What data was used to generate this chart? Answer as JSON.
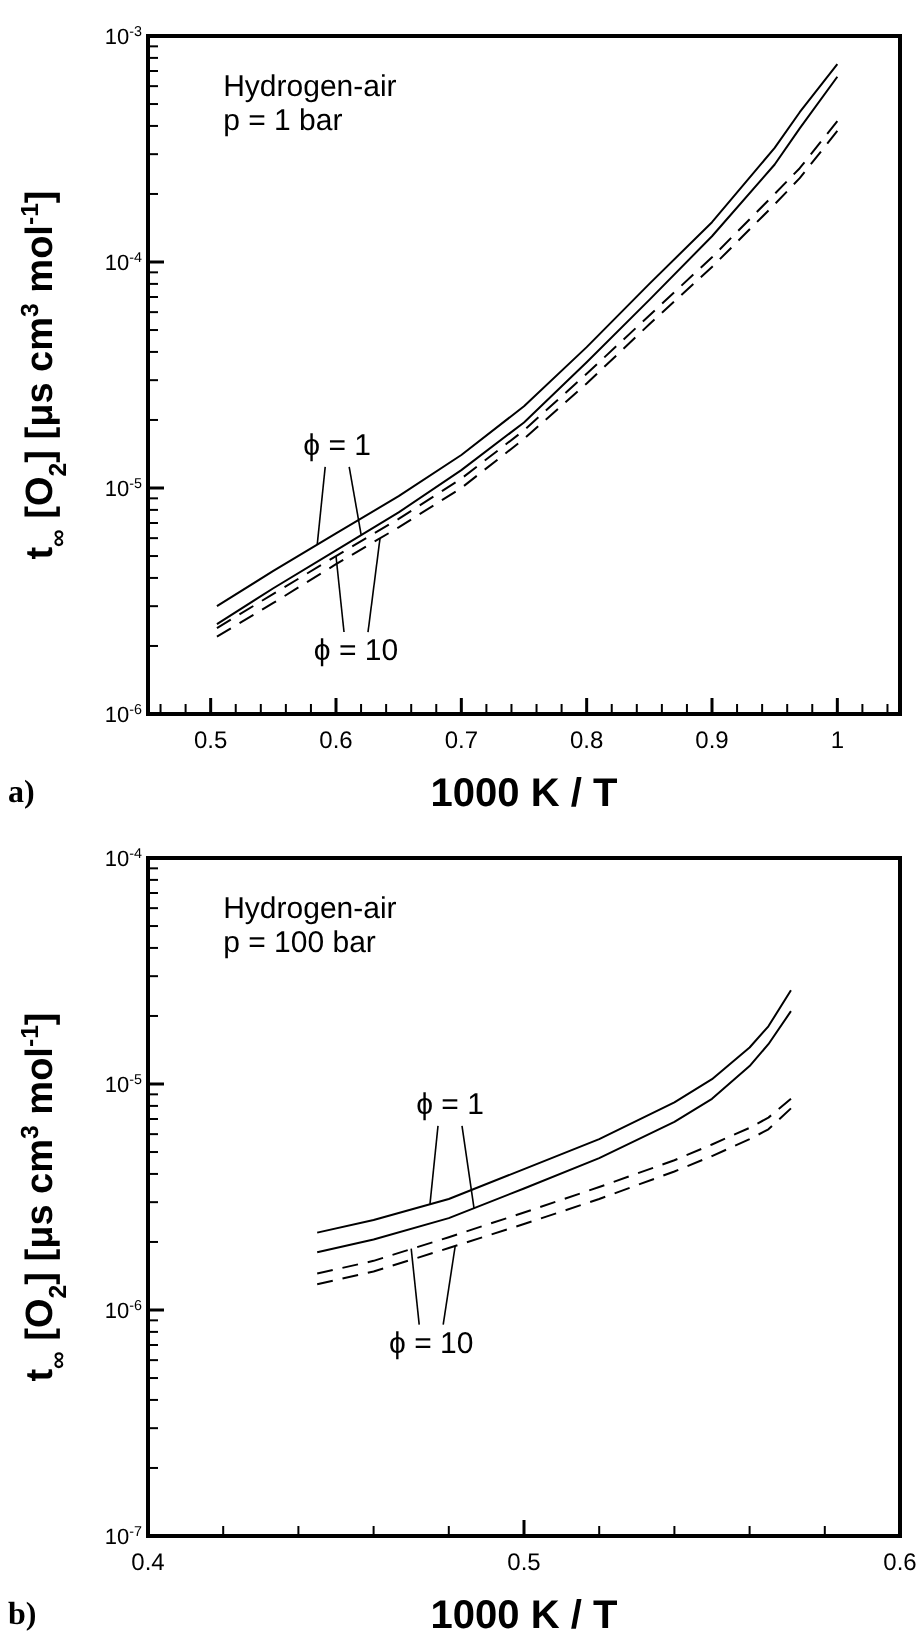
{
  "chart_data": [
    {
      "type": "line",
      "title": "a)",
      "xlabel": "1000 K / T",
      "ylabel": "t$_{∞}$ [O$_{2}$] [μs cm$^{3}$ mol$^{-1}$]",
      "log": "y",
      "grid": false,
      "x": [
        0.505,
        0.55,
        0.6,
        0.65,
        0.7,
        0.75,
        0.8,
        0.85,
        0.9,
        0.95,
        0.97,
        1.0
      ],
      "series": [
        {
          "color": "#000000",
          "line_style": "solid",
          "values": [
            3e-06,
            4.3e-06,
            6.3e-06,
            9.2e-06,
            1.4e-05,
            2.3e-05,
            4.2e-05,
            8e-05,
            0.00015,
            0.00032,
            0.00046,
            0.00075
          ]
        },
        {
          "color": "#000000",
          "line_style": "solid",
          "values": [
            2.5e-06,
            3.6e-06,
            5.3e-06,
            7.8e-06,
            1.2e-05,
            1.95e-05,
            3.6e-05,
            6.8e-05,
            0.00013,
            0.00027,
            0.00039,
            0.00066
          ]
        },
        {
          "color": "#000000",
          "line_style": "dashed",
          "values": [
            2.4e-06,
            3.4e-06,
            5e-06,
            7.3e-06,
            1.1e-05,
            1.8e-05,
            3.2e-05,
            5.8e-05,
            0.000105,
            0.0002,
            0.00026,
            0.00042
          ]
        },
        {
          "color": "#000000",
          "line_style": "dashed",
          "values": [
            2.2e-06,
            3.1e-06,
            4.6e-06,
            6.7e-06,
            1e-05,
            1.65e-05,
            2.9e-05,
            5.3e-05,
            9.5e-05,
            0.00018,
            0.000235,
            0.00038
          ]
        }
      ],
      "xlim": [
        0.45,
        1.05
      ],
      "xticks": [
        {
          "value": 0.46,
          "label": null
        },
        {
          "value": 0.48,
          "label": null
        },
        0.5,
        {
          "value": 0.52,
          "label": null
        },
        {
          "value": 0.54,
          "label": null
        },
        {
          "value": 0.56,
          "label": null
        },
        {
          "value": 0.58,
          "label": null
        },
        0.6,
        {
          "value": 0.62,
          "label": null
        },
        {
          "value": 0.64,
          "label": null
        },
        {
          "value": 0.66,
          "label": null
        },
        {
          "value": 0.68,
          "label": null
        },
        0.7,
        {
          "value": 0.72,
          "label": null
        },
        {
          "value": 0.74,
          "label": null
        },
        {
          "value": 0.76,
          "label": null
        },
        {
          "value": 0.78,
          "label": null
        },
        0.8,
        {
          "value": 0.82,
          "label": null
        },
        {
          "value": 0.84,
          "label": null
        },
        {
          "value": 0.86,
          "label": null
        },
        {
          "value": 0.88,
          "label": null
        },
        0.9,
        {
          "value": 0.92,
          "label": null
        },
        {
          "value": 0.94,
          "label": null
        },
        {
          "value": 0.96,
          "label": null
        },
        {
          "value": 0.98,
          "label": null
        },
        1,
        {
          "value": 1.02,
          "label": null
        },
        {
          "value": 1.04,
          "label": null
        }
      ],
      "ylim": [
        1e-06,
        0.001
      ],
      "yticks": [
        {
          "value": 1e-06,
          "label": "10$^{-6}$"
        },
        {
          "value": 2e-06,
          "label": null
        },
        {
          "value": 3e-06,
          "label": null
        },
        {
          "value": 4e-06,
          "label": null
        },
        {
          "value": 5e-06,
          "label": null
        },
        {
          "value": 6e-06,
          "label": null
        },
        {
          "value": 7e-06,
          "label": null
        },
        {
          "value": 8e-06,
          "label": null
        },
        {
          "value": 9e-06,
          "label": null
        },
        {
          "value": 1e-05,
          "label": "10$^{-5}$"
        },
        {
          "value": 2e-05,
          "label": null
        },
        {
          "value": 3e-05,
          "label": null
        },
        {
          "value": 4e-05,
          "label": null
        },
        {
          "value": 5e-05,
          "label": null
        },
        {
          "value": 6e-05,
          "label": null
        },
        {
          "value": 7e-05,
          "label": null
        },
        {
          "value": 8e-05,
          "label": null
        },
        {
          "value": 9e-05,
          "label": null
        },
        {
          "value": 0.0001,
          "label": "10$^{-4}$"
        },
        {
          "value": 0.0002,
          "label": null
        },
        {
          "value": 0.0003,
          "label": null
        },
        {
          "value": 0.0004,
          "label": null
        },
        {
          "value": 0.0005,
          "label": null
        },
        {
          "value": 0.0006,
          "label": null
        },
        {
          "value": 0.0007,
          "label": null
        },
        {
          "value": 0.0008,
          "label": null
        },
        {
          "value": 0.0009,
          "label": null
        },
        {
          "value": 0.001,
          "label": "10$^{-3}$"
        }
      ],
      "annotations": [
        "Hydrogen-air",
        "p = 1 bar",
        {
          "text": "ϕ = 1",
          "x": 0.585,
          "y": 5.6e-06
        },
        {
          "text": "ϕ = 10",
          "x": 0.6,
          "y": 5e-06
        }
      ]
    },
    {
      "type": "line",
      "title": "b)",
      "xlabel": "1000 K / T",
      "ylabel": "t$_{∞}$ [O$_{2}$] [μs cm$^{3}$ mol$^{-1}$]",
      "log": "y",
      "grid": false,
      "x": [
        0.445,
        0.46,
        0.48,
        0.5,
        0.52,
        0.54,
        0.55,
        0.56,
        0.565,
        0.571
      ],
      "series": [
        {
          "color": "#000000",
          "line_style": "solid",
          "values": [
            2.2e-06,
            2.5e-06,
            3.1e-06,
            4.2e-06,
            5.7e-06,
            8.3e-06,
            1.05e-05,
            1.45e-05,
            1.8e-05,
            2.6e-05
          ]
        },
        {
          "color": "#000000",
          "line_style": "solid",
          "values": [
            1.8e-06,
            2.05e-06,
            2.55e-06,
            3.45e-06,
            4.7e-06,
            6.8e-06,
            8.6e-06,
            1.2e-05,
            1.5e-05,
            2.1e-05
          ]
        },
        {
          "color": "#000000",
          "line_style": "dashed",
          "values": [
            1.45e-06,
            1.65e-06,
            2.1e-06,
            2.7e-06,
            3.5e-06,
            4.6e-06,
            5.4e-06,
            6.4e-06,
            7.1e-06,
            8.6e-06
          ]
        },
        {
          "color": "#000000",
          "line_style": "dashed",
          "values": [
            1.3e-06,
            1.48e-06,
            1.88e-06,
            2.4e-06,
            3.1e-06,
            4.1e-06,
            4.8e-06,
            5.7e-06,
            6.3e-06,
            7.8e-06
          ]
        }
      ],
      "xlim": [
        0.4,
        0.6
      ],
      "xticks": [
        0.4,
        {
          "value": 0.42,
          "label": null
        },
        {
          "value": 0.44,
          "label": null
        },
        {
          "value": 0.46,
          "label": null
        },
        {
          "value": 0.48,
          "label": null
        },
        0.5,
        {
          "value": 0.52,
          "label": null
        },
        {
          "value": 0.54,
          "label": null
        },
        {
          "value": 0.56,
          "label": null
        },
        {
          "value": 0.58,
          "label": null
        },
        0.6
      ],
      "ylim": [
        1e-07,
        0.0001
      ],
      "yticks": [
        {
          "value": 1e-07,
          "label": "10$^{-7}$"
        },
        {
          "value": 2e-07,
          "label": null
        },
        {
          "value": 3e-07,
          "label": null
        },
        {
          "value": 4e-07,
          "label": null
        },
        {
          "value": 5e-07,
          "label": null
        },
        {
          "value": 6e-07,
          "label": null
        },
        {
          "value": 7e-07,
          "label": null
        },
        {
          "value": 8e-07,
          "label": null
        },
        {
          "value": 9e-07,
          "label": null
        },
        {
          "value": 1e-06,
          "label": "10$^{-6}$"
        },
        {
          "value": 2e-06,
          "label": null
        },
        {
          "value": 3e-06,
          "label": null
        },
        {
          "value": 4e-06,
          "label": null
        },
        {
          "value": 5e-06,
          "label": null
        },
        {
          "value": 6e-06,
          "label": null
        },
        {
          "value": 7e-06,
          "label": null
        },
        {
          "value": 8e-06,
          "label": null
        },
        {
          "value": 9e-06,
          "label": null
        },
        {
          "value": 1e-05,
          "label": "10$^{-5}$"
        },
        {
          "value": 2e-05,
          "label": null
        },
        {
          "value": 3e-05,
          "label": null
        },
        {
          "value": 4e-05,
          "label": null
        },
        {
          "value": 5e-05,
          "label": null
        },
        {
          "value": 6e-05,
          "label": null
        },
        {
          "value": 7e-05,
          "label": null
        },
        {
          "value": 8e-05,
          "label": null
        },
        {
          "value": 9e-05,
          "label": null
        },
        {
          "value": 0.0001,
          "label": "10$^{-4}$"
        }
      ],
      "annotations": [
        "Hydrogen-air",
        "p = 100 bar",
        {
          "text": "ϕ = 1",
          "x": 0.475,
          "y": 2.95e-06
        },
        {
          "text": "ϕ = 10",
          "x": 0.47,
          "y": 1.87e-06
        }
      ]
    }
  ]
}
